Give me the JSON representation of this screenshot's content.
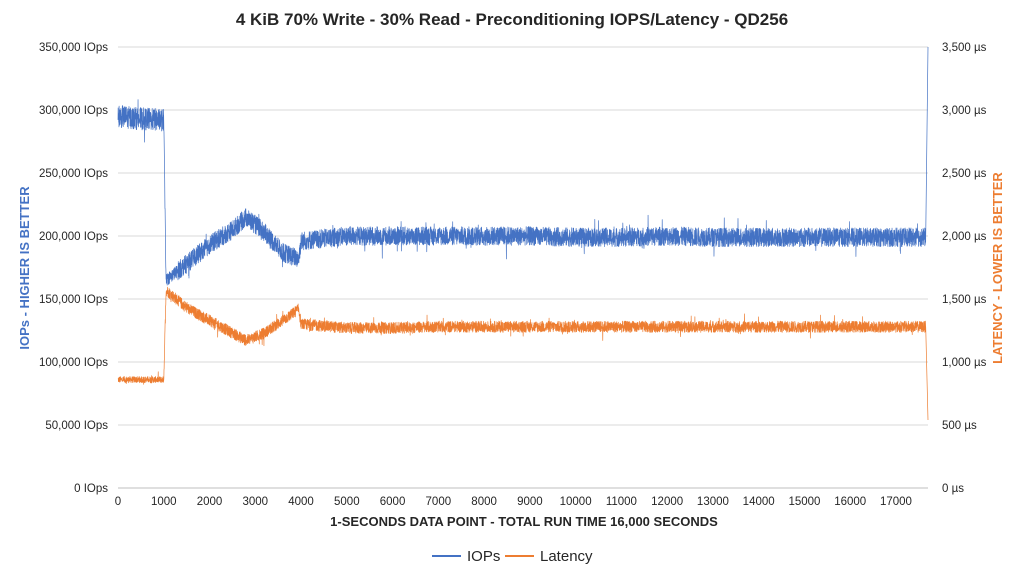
{
  "chart_data": {
    "type": "line",
    "title": "4 KiB 70% Write - 30% Read - Preconditioning IOPS/Latency - QD256",
    "xlabel": "1-SECONDS DATA POINT - TOTAL RUN TIME 16,000 SECONDS",
    "ylabel_left": "IOPs - HIGHER IS BETTER",
    "ylabel_right": "LATENCY - LOWER IS BETTER",
    "xlim": [
      0,
      17700
    ],
    "ylim_left": [
      0,
      350000
    ],
    "ylim_right": [
      0,
      3500
    ],
    "x_ticks": [
      "0",
      "1000",
      "2000",
      "3000",
      "4000",
      "5000",
      "6000",
      "7000",
      "8000",
      "9000",
      "10000",
      "11000",
      "12000",
      "13000",
      "14000",
      "15000",
      "16000",
      "17000"
    ],
    "y_ticks_left": [
      "0 IOps",
      "50,000 IOps",
      "100,000 IOps",
      "150,000 IOps",
      "200,000 IOps",
      "250,000 IOps",
      "300,000 IOps",
      "350,000 IOps"
    ],
    "y_ticks_right": [
      "0 µs",
      "500 µs",
      "1,000 µs",
      "1,500 µs",
      "2,000 µs",
      "2,500 µs",
      "3,000 µs",
      "3,500 µs"
    ],
    "grid": true,
    "legend_position": "bottom",
    "series": [
      {
        "name": "IOPs",
        "axis": "left",
        "color": "#4472C4",
        "x": [
          0,
          500,
          1000,
          1050,
          1500,
          2000,
          2500,
          2800,
          3200,
          3600,
          3800,
          3950,
          4000,
          5000,
          6000,
          7000,
          8000,
          9000,
          10000,
          11000,
          12000,
          13000,
          14000,
          15000,
          16000,
          17000,
          17650,
          17700
        ],
        "y": [
          295000,
          293000,
          292000,
          165000,
          178000,
          193000,
          205000,
          215000,
          203000,
          187000,
          184000,
          182000,
          196000,
          200000,
          200000,
          200000,
          200000,
          200000,
          199000,
          199000,
          200000,
          199000,
          199000,
          199000,
          199000,
          199000,
          199000,
          350000
        ]
      },
      {
        "name": "Latency",
        "axis": "right",
        "color": "#ED7D31",
        "x": [
          0,
          500,
          1000,
          1050,
          1500,
          2000,
          2500,
          2800,
          3200,
          3600,
          3800,
          3950,
          4000,
          5000,
          6000,
          7000,
          8000,
          9000,
          10000,
          11000,
          12000,
          13000,
          14000,
          15000,
          16000,
          17000,
          17650,
          17700
        ],
        "y": [
          860,
          860,
          860,
          1570,
          1430,
          1330,
          1230,
          1170,
          1230,
          1330,
          1380,
          1420,
          1300,
          1270,
          1270,
          1280,
          1280,
          1280,
          1280,
          1280,
          1280,
          1280,
          1280,
          1280,
          1280,
          1280,
          1280,
          540
        ]
      }
    ]
  }
}
